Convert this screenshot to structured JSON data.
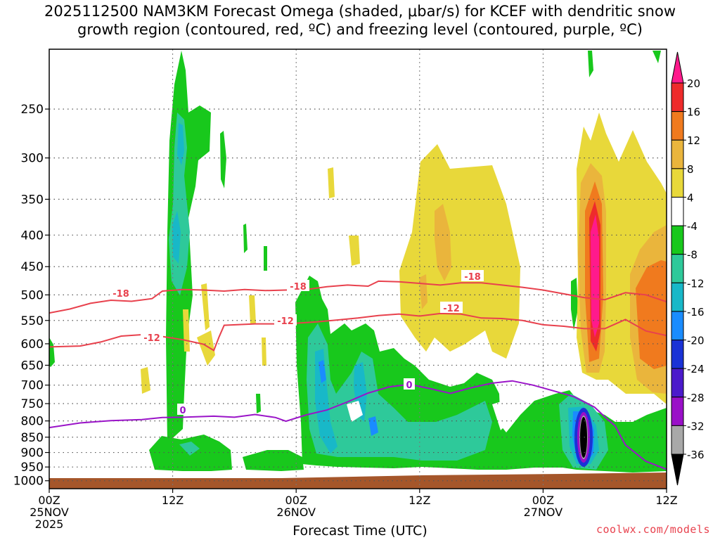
{
  "title": {
    "line1": "2025112500 NAM3KM Forecast Omega (shaded, μbar/s) for KCEF with dendritic snow",
    "line2": "growth region (contoured, red, ºC) and freezing level (contoured, purple, ºC)"
  },
  "credit": "coolwx.com/models",
  "chart_data": {
    "type": "heatmap",
    "xlabel": "Forecast Time (UTC)",
    "ylabel": "",
    "x_range_hours": [
      0,
      60
    ],
    "y_scale": "log-pressure",
    "y_range_hPa": [
      1030,
      200
    ],
    "x_ticks": [
      {
        "hour": 0,
        "label": [
          "00Z",
          "25NOV",
          "2025"
        ]
      },
      {
        "hour": 12,
        "label": [
          "12Z"
        ]
      },
      {
        "hour": 24,
        "label": [
          "00Z",
          "26NOV"
        ]
      },
      {
        "hour": 36,
        "label": [
          "12Z"
        ]
      },
      {
        "hour": 48,
        "label": [
          "00Z",
          "27NOV"
        ]
      },
      {
        "hour": 60,
        "label": [
          "12Z"
        ]
      }
    ],
    "y_ticks": [
      250,
      300,
      350,
      400,
      450,
      500,
      550,
      600,
      650,
      700,
      750,
      800,
      850,
      900,
      950,
      1000
    ],
    "grid": true,
    "colorbar": {
      "labels": [
        "20",
        "16",
        "12",
        "8",
        "4",
        "-4",
        "-8",
        "-12",
        "-16",
        "-20",
        "-24",
        "-28",
        "-32",
        "-36"
      ],
      "colors": [
        "#ff1a8c",
        "#ee2b2b",
        "#f07a1e",
        "#eab53c",
        "#e8d83a",
        "#ffffff",
        "#18c81c",
        "#2ec99a",
        "#18b8c8",
        "#1a8cff",
        "#1a32d6",
        "#4b1acb",
        "#9a10c8",
        "#a8a8a8",
        "#000000"
      ]
    },
    "contour_labels": {
      "dendritic": [
        "-18",
        "-18",
        "-18",
        "-12",
        "-12",
        "-12"
      ],
      "freezing": [
        "0",
        "0"
      ]
    },
    "series": [
      {
        "name": "-18",
        "color": "#e8414d",
        "points": [
          [
            0,
            535
          ],
          [
            2,
            527
          ],
          [
            4,
            516
          ],
          [
            6,
            510
          ],
          [
            8,
            512
          ],
          [
            10,
            507
          ],
          [
            11,
            493
          ],
          [
            13,
            490
          ],
          [
            15,
            491
          ],
          [
            17,
            493
          ],
          [
            19,
            490
          ],
          [
            21,
            492
          ],
          [
            23,
            491
          ],
          [
            25,
            490
          ],
          [
            27,
            485
          ],
          [
            29,
            482
          ],
          [
            31,
            484
          ],
          [
            32,
            475
          ],
          [
            34,
            476
          ],
          [
            36,
            479
          ],
          [
            38,
            482
          ],
          [
            40,
            478
          ],
          [
            42,
            478
          ],
          [
            44,
            482
          ],
          [
            46,
            486
          ],
          [
            48,
            491
          ],
          [
            50,
            498
          ],
          [
            52,
            505
          ],
          [
            54,
            509
          ],
          [
            56,
            496
          ],
          [
            58,
            500
          ],
          [
            60,
            513
          ]
        ]
      },
      {
        "name": "-12",
        "color": "#e8414d",
        "points": [
          [
            0,
            607
          ],
          [
            3,
            605
          ],
          [
            5,
            596
          ],
          [
            7,
            583
          ],
          [
            9,
            580
          ],
          [
            11,
            584
          ],
          [
            13,
            591
          ],
          [
            15,
            601
          ],
          [
            16,
            615
          ],
          [
            16.5,
            585
          ],
          [
            17,
            560
          ],
          [
            20,
            557
          ],
          [
            23,
            557
          ],
          [
            26,
            553
          ],
          [
            28,
            549
          ],
          [
            30,
            545
          ],
          [
            32,
            540
          ],
          [
            34,
            537
          ],
          [
            36,
            541
          ],
          [
            38,
            536
          ],
          [
            40,
            537
          ],
          [
            42,
            545
          ],
          [
            44,
            546
          ],
          [
            46,
            550
          ],
          [
            48,
            559
          ],
          [
            50,
            562
          ],
          [
            52,
            567
          ],
          [
            54,
            567
          ],
          [
            56,
            548
          ],
          [
            58,
            572
          ],
          [
            60,
            582
          ]
        ]
      },
      {
        "name": "0",
        "color": "#9a14c8",
        "points": [
          [
            0,
            820
          ],
          [
            3,
            806
          ],
          [
            6,
            799
          ],
          [
            9,
            796
          ],
          [
            11,
            790
          ],
          [
            13,
            789
          ],
          [
            16,
            786
          ],
          [
            18,
            789
          ],
          [
            20,
            781
          ],
          [
            22,
            790
          ],
          [
            23,
            801
          ],
          [
            25,
            782
          ],
          [
            27,
            768
          ],
          [
            29,
            745
          ],
          [
            31,
            721
          ],
          [
            33,
            705
          ],
          [
            35,
            698
          ],
          [
            37,
            709
          ],
          [
            39,
            722
          ],
          [
            41,
            707
          ],
          [
            43,
            695
          ],
          [
            45,
            689
          ],
          [
            47,
            700
          ],
          [
            49,
            715
          ],
          [
            51,
            731
          ],
          [
            53,
            760
          ],
          [
            54,
            788
          ],
          [
            55,
            815
          ],
          [
            56,
            875
          ],
          [
            58,
            930
          ],
          [
            60,
            958
          ]
        ]
      }
    ],
    "omega_regions": [
      {
        "name": "strong-ascent",
        "value": -36,
        "hour": 51.3,
        "p_hPa": [
          822,
          910
        ]
      },
      {
        "name": "max-descent",
        "value": 20,
        "hour": 53.3,
        "p_hPa": [
          382,
          505
        ]
      }
    ]
  }
}
